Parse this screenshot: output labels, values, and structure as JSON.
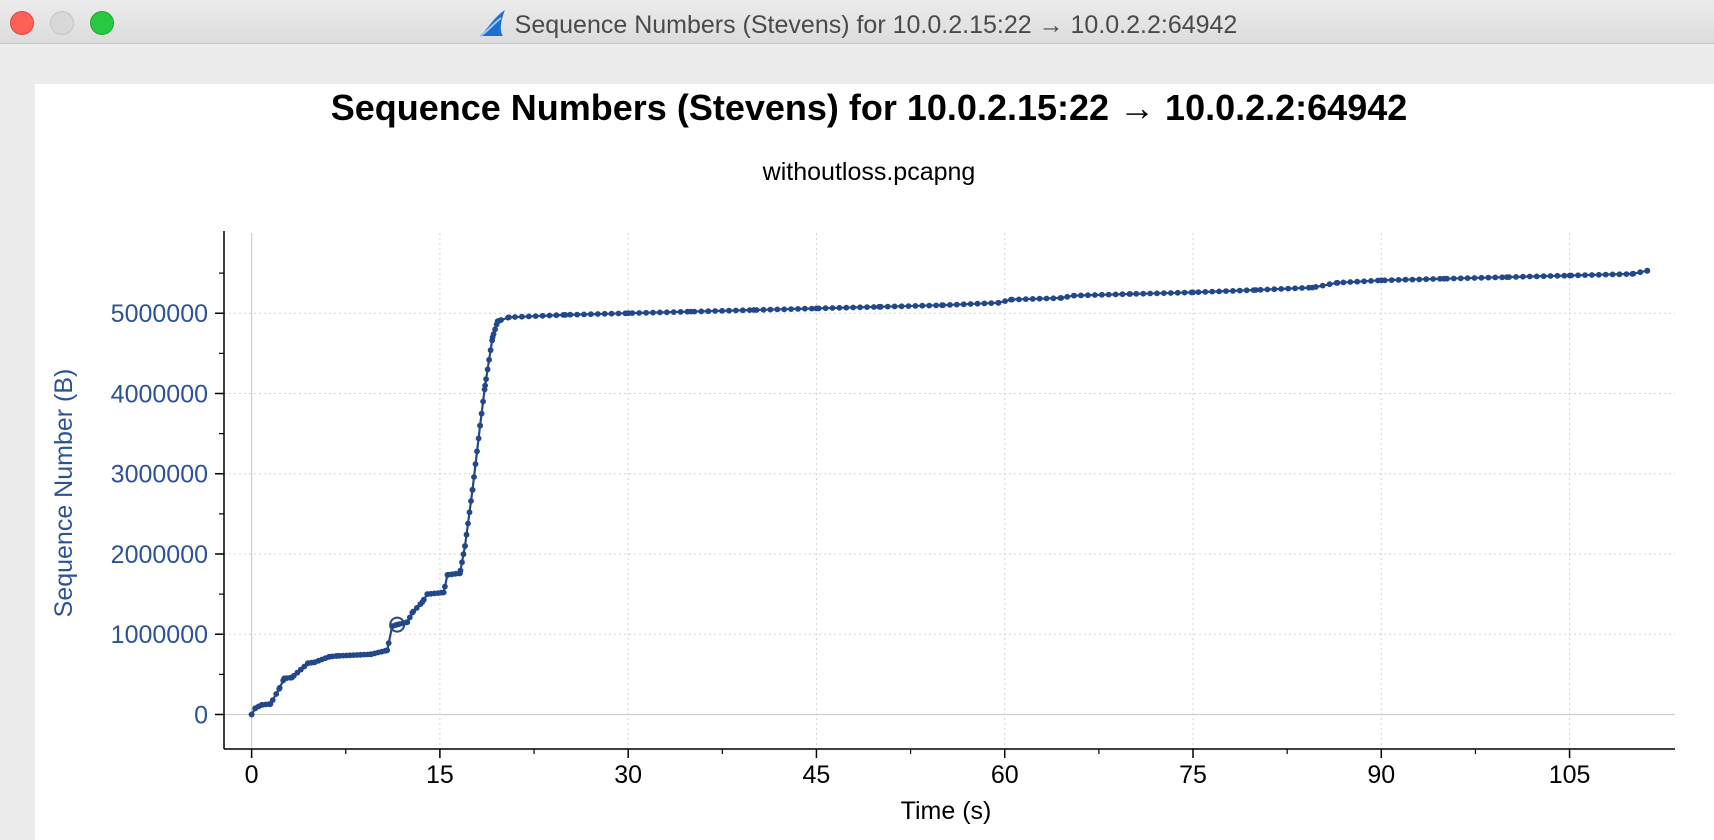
{
  "window": {
    "title": "Sequence Numbers (Stevens) for 10.0.2.15:22 → 10.0.2.2:64942",
    "icon": "wireshark-fin-icon"
  },
  "colors": {
    "series": "#22488a",
    "axis_text": "#2c5396",
    "grid": "#d4d4d4"
  },
  "chart_data": {
    "type": "scatter",
    "title": "Sequence Numbers (Stevens) for 10.0.2.15:22 → 10.0.2.2:64942",
    "subtitle": "withoutloss.pcapng",
    "xlabel": "Time (s)",
    "ylabel": "Sequence Number (B)",
    "xlim": [
      -2.2,
      113.4
    ],
    "ylim": [
      -430000,
      6000000
    ],
    "xticks": [
      0,
      15,
      30,
      45,
      60,
      75,
      90,
      105
    ],
    "xtick_labels": [
      "0",
      "15",
      "30",
      "45",
      "60",
      "75",
      "90",
      "105"
    ],
    "yticks": [
      0,
      1000000,
      2000000,
      3000000,
      4000000,
      5000000
    ],
    "ytick_labels": [
      "0",
      "1000000",
      "2000000",
      "3000000",
      "4000000",
      "5000000"
    ],
    "grid": true,
    "series": [
      {
        "name": "Sequence Number",
        "x": [
          0,
          0.3,
          0.8,
          1.5,
          2.2,
          2.6,
          3.2,
          4.5,
          5.0,
          6.2,
          6.8,
          9.5,
          10.8,
          11.2,
          11.6,
          12.4,
          12.8,
          13.6,
          14.0,
          15.3,
          15.6,
          16.6,
          17.0,
          17.6,
          18.2,
          18.6,
          19.2,
          19.6,
          20.5,
          25,
          30,
          35,
          40,
          45,
          50,
          55,
          59.5,
          60.5,
          64.5,
          65.5,
          70,
          75,
          80,
          84.5,
          86.5,
          90,
          95,
          100,
          105,
          110,
          111.2
        ],
        "y": [
          0,
          80000,
          120000,
          130000,
          320000,
          450000,
          460000,
          640000,
          650000,
          720000,
          730000,
          750000,
          800000,
          1100000,
          1120000,
          1150000,
          1270000,
          1400000,
          1500000,
          1520000,
          1740000,
          1760000,
          2100000,
          2800000,
          3600000,
          4100000,
          4700000,
          4900000,
          4950000,
          4980000,
          5000000,
          5020000,
          5040000,
          5060000,
          5080000,
          5100000,
          5130000,
          5170000,
          5190000,
          5220000,
          5240000,
          5260000,
          5290000,
          5320000,
          5380000,
          5410000,
          5430000,
          5450000,
          5470000,
          5490000,
          5530000
        ]
      }
    ],
    "annotations": [
      {
        "type": "open-circle",
        "x": 11.6,
        "y": 1120000
      }
    ]
  }
}
